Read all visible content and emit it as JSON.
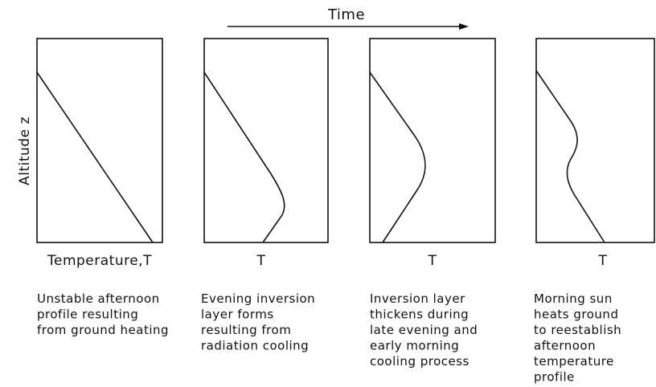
{
  "time_label": "Time",
  "y_axis_label": "Altitude z",
  "panels": [
    {
      "x_label": "Temperature,T",
      "caption": [
        "Unstable afternoon",
        "profile resulting",
        "from ground heating"
      ]
    },
    {
      "x_label": "T",
      "caption": [
        "Evening inversion",
        "layer forms",
        "resulting from",
        "radiation cooling"
      ]
    },
    {
      "x_label": "T",
      "caption": [
        "Inversion layer",
        "thickens during",
        "late evening and",
        "early morning",
        "cooling process"
      ]
    },
    {
      "x_label": "T",
      "caption": [
        "Morning sun",
        "heats ground",
        "to reestablish",
        "afternoon",
        "temperature",
        "profile"
      ]
    }
  ]
}
